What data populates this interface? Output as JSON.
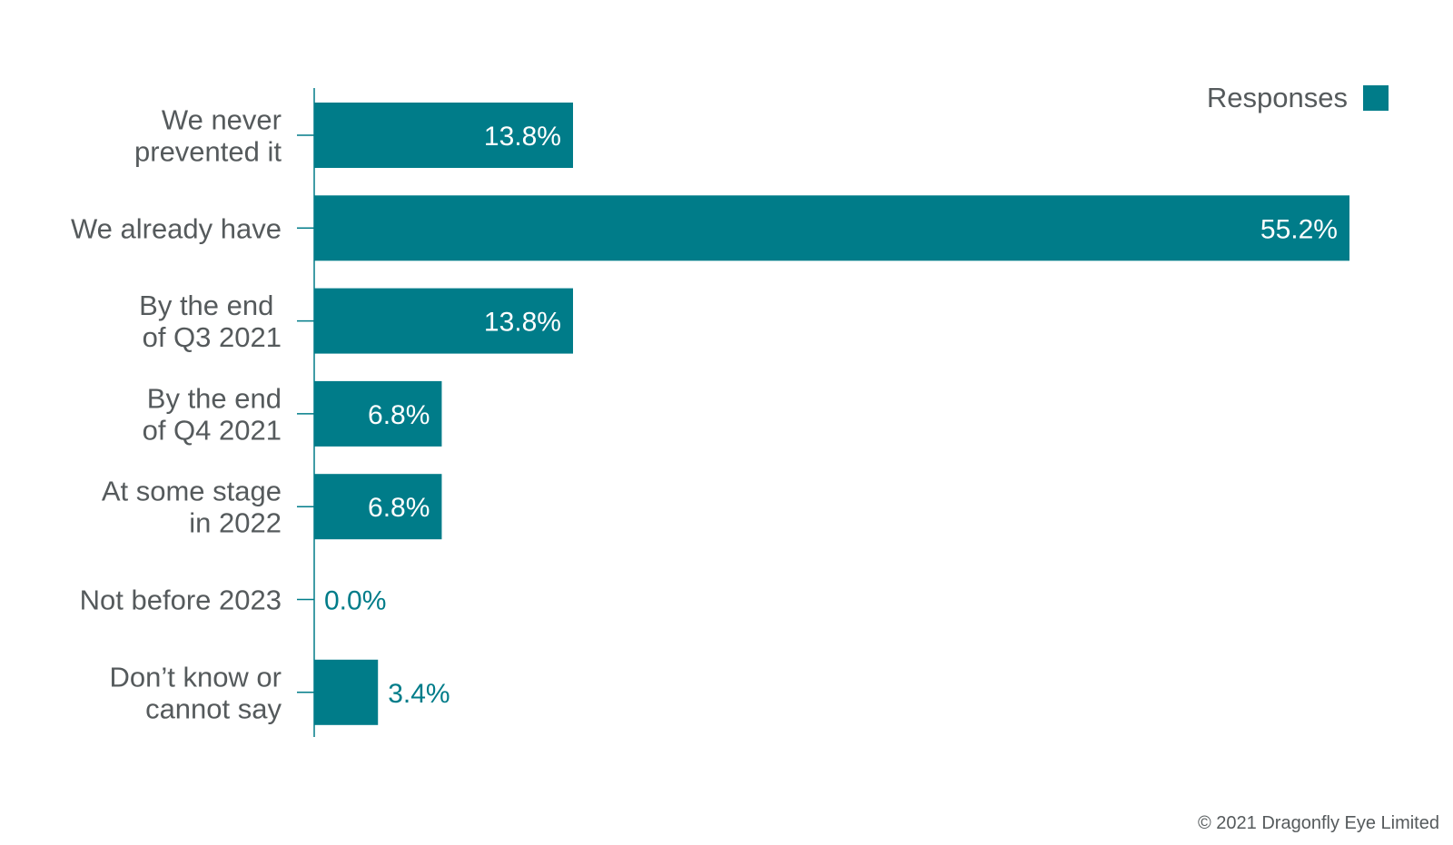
{
  "chart_data": {
    "type": "bar",
    "orientation": "horizontal",
    "categories": [
      [
        "We never",
        "prevented it"
      ],
      [
        "We already have"
      ],
      [
        "By the end ",
        "of Q3 2021"
      ],
      [
        "By the end",
        "of Q4 2021"
      ],
      [
        "At some stage",
        "in 2022"
      ],
      [
        "Not before 2023"
      ],
      [
        "Don’t know or",
        "cannot say"
      ]
    ],
    "series": [
      {
        "name": "Responses",
        "values": [
          13.8,
          55.2,
          13.8,
          6.8,
          6.8,
          0.0,
          3.4
        ],
        "value_labels": [
          "13.8%",
          "55.2%",
          "13.8%",
          "6.8%",
          "6.8%",
          "0.0%",
          "3.4%"
        ],
        "color": "#007c89"
      }
    ],
    "xlim": [
      0,
      55.2
    ],
    "grid": false,
    "legend": {
      "position": "top-right",
      "label": "Responses"
    },
    "colors": {
      "bar": "#007c89",
      "label_inside": "#ffffff",
      "label_outside": "#007c89",
      "axis": "#007c89",
      "text": "#555a5c"
    }
  },
  "footer": {
    "copyright": "© 2021 Dragonfly Eye Limited"
  }
}
